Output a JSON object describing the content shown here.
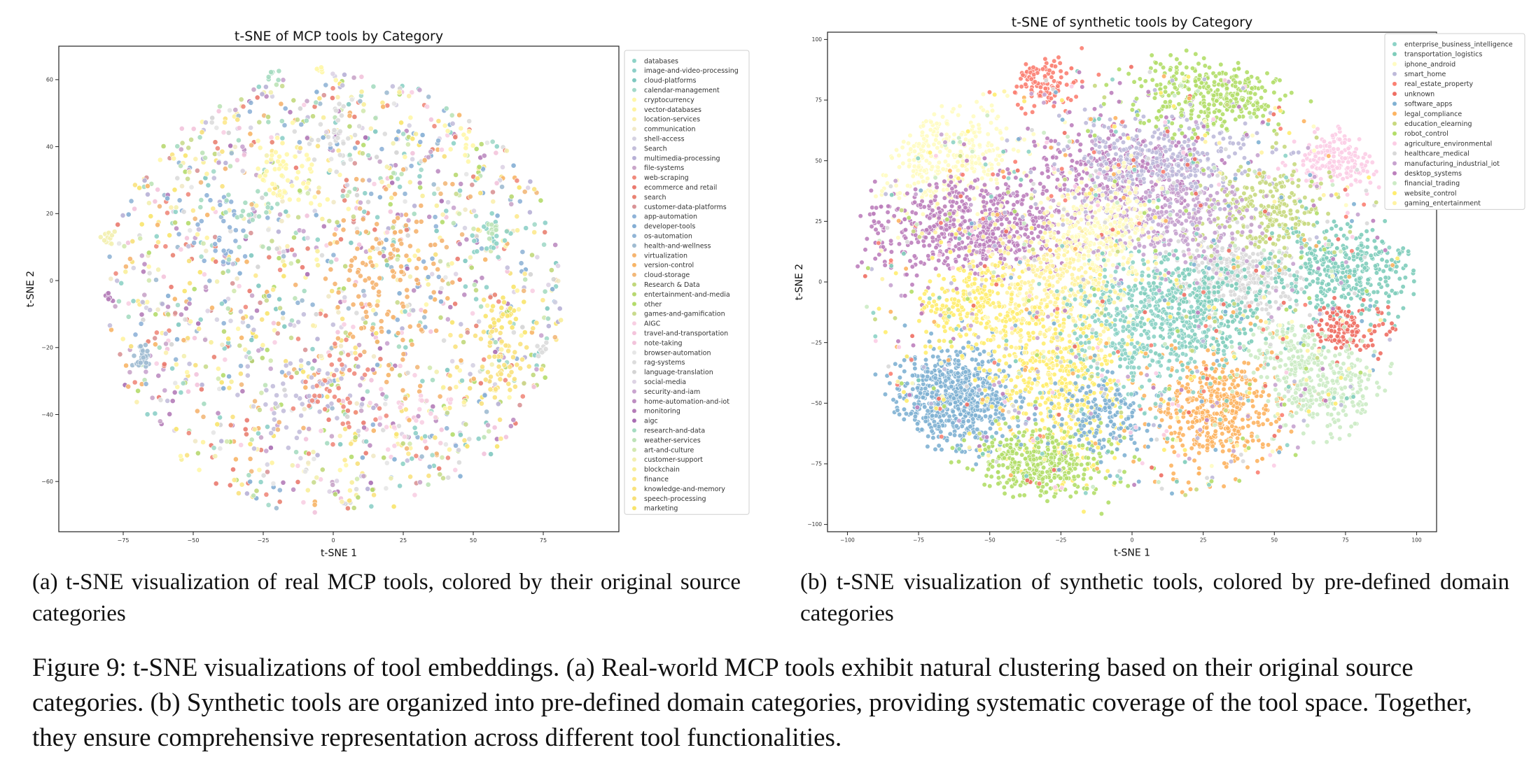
{
  "captions": {
    "a": "(a) t-SNE visualization of real MCP tools, colored by their original source categories",
    "b": "(b) t-SNE visualization of synthetic tools, colored by pre-defined domain categories",
    "figure": "Figure 9: t-SNE visualizations of tool embeddings. (a) Real-world MCP tools exhibit natural clustering based on their original source categories. (b) Synthetic tools are organized into pre-defined domain categories, providing systematic coverage of the tool space. Together, they ensure comprehensive representation across different tool functionalities."
  },
  "chart_data": [
    {
      "type": "scatter",
      "title": "t-SNE of MCP tools by Category",
      "xlabel": "t-SNE 1",
      "ylabel": "t-SNE 2",
      "xlim": [
        -98,
        102
      ],
      "ylim": [
        -75,
        70
      ],
      "xticks": [
        -75,
        -50,
        -25,
        0,
        25,
        50,
        75
      ],
      "yticks": [
        -60,
        -40,
        -20,
        0,
        20,
        40,
        60
      ],
      "grid": false,
      "legend_position": "right-outside",
      "point_count": 2200,
      "categories": [
        {
          "name": "databases",
          "color": "#8ed3c7"
        },
        {
          "name": "image-and-video-processing",
          "color": "#8dcfc8"
        },
        {
          "name": "cloud-platforms",
          "color": "#7fc8c0"
        },
        {
          "name": "calendar-management",
          "color": "#a3d9c9"
        },
        {
          "name": "cryptocurrency",
          "color": "#fff7a8"
        },
        {
          "name": "vector-databases",
          "color": "#fff3a0"
        },
        {
          "name": "location-services",
          "color": "#fbefae"
        },
        {
          "name": "communication",
          "color": "#f1e9c7"
        },
        {
          "name": "shell-access",
          "color": "#d5d2e2"
        },
        {
          "name": "Search",
          "color": "#c3bedb"
        },
        {
          "name": "multimedia-processing",
          "color": "#b7b0d6"
        },
        {
          "name": "file-systems",
          "color": "#c9a5c9"
        },
        {
          "name": "web-scraping",
          "color": "#f08a7c"
        },
        {
          "name": "ecommerce and retail",
          "color": "#ea7a6f"
        },
        {
          "name": "search",
          "color": "#e98272"
        },
        {
          "name": "customer-data-platforms",
          "color": "#d99396"
        },
        {
          "name": "app-automation",
          "color": "#8fb3d8"
        },
        {
          "name": "developer-tools",
          "color": "#84aed4"
        },
        {
          "name": "os-automation",
          "color": "#91b5d6"
        },
        {
          "name": "health-and-wellness",
          "color": "#9fbbd1"
        },
        {
          "name": "virtualization",
          "color": "#f5b470"
        },
        {
          "name": "version-control",
          "color": "#f7b567"
        },
        {
          "name": "cloud-storage",
          "color": "#f2b87a"
        },
        {
          "name": "Research & Data",
          "color": "#c1d87c"
        },
        {
          "name": "entertainment-and-media",
          "color": "#b8d871"
        },
        {
          "name": "other",
          "color": "#b4dc6b"
        },
        {
          "name": "games-and-gamification",
          "color": "#c9db8e"
        },
        {
          "name": "AIGC",
          "color": "#f8cfe3"
        },
        {
          "name": "travel-and-transportation",
          "color": "#f4c4dc"
        },
        {
          "name": "note-taking",
          "color": "#f2c3db"
        },
        {
          "name": "browser-automation",
          "color": "#e6e6e6"
        },
        {
          "name": "rag-systems",
          "color": "#dcdcdc"
        },
        {
          "name": "language-translation",
          "color": "#d4d4d4"
        },
        {
          "name": "social-media",
          "color": "#ddd3e4"
        },
        {
          "name": "security-and-iam",
          "color": "#c9a4cf"
        },
        {
          "name": "home-automation-and-iot",
          "color": "#bd8dc1"
        },
        {
          "name": "monitoring",
          "color": "#b47cb8"
        },
        {
          "name": "aigc",
          "color": "#a96db3"
        },
        {
          "name": "research-and-data",
          "color": "#a6dcc1"
        },
        {
          "name": "weather-services",
          "color": "#bde3b7"
        },
        {
          "name": "art-and-culture",
          "color": "#d3e9b0"
        },
        {
          "name": "customer-support",
          "color": "#f3efb0"
        },
        {
          "name": "blockchain",
          "color": "#f8ee9a"
        },
        {
          "name": "finance",
          "color": "#fde98e"
        },
        {
          "name": "knowledge-and-memory",
          "color": "#f9e27e"
        },
        {
          "name": "speech-processing",
          "color": "#f7e07a"
        },
        {
          "name": "marketing",
          "color": "#f8e46c"
        }
      ]
    },
    {
      "type": "scatter",
      "title": "t-SNE of synthetic tools by Category",
      "xlabel": "t-SNE 1",
      "ylabel": "t-SNE 2",
      "xlim": [
        -107,
        107
      ],
      "ylim": [
        -103,
        103
      ],
      "xticks": [
        -100,
        -75,
        -50,
        -25,
        0,
        25,
        50,
        75,
        100
      ],
      "yticks": [
        -100,
        -75,
        -50,
        -25,
        0,
        25,
        50,
        75,
        100
      ],
      "grid": false,
      "legend_position": "right-outside",
      "point_count": 8000,
      "categories": [
        {
          "name": "enterprise_business_intelligence",
          "color": "#8dd3c7"
        },
        {
          "name": "transportation_logistics",
          "color": "#7fcdbb"
        },
        {
          "name": "iphone_android",
          "color": "#fffcc2"
        },
        {
          "name": "smart_home",
          "color": "#bebada"
        },
        {
          "name": "real_estate_property",
          "color": "#fb8072"
        },
        {
          "name": "unknown",
          "color": "#ee6e63"
        },
        {
          "name": "software_apps",
          "color": "#80b1d3"
        },
        {
          "name": "legal_compliance",
          "color": "#fdb462"
        },
        {
          "name": "education_elearning",
          "color": "#c8d97f"
        },
        {
          "name": "robot_control",
          "color": "#b3de69"
        },
        {
          "name": "agriculture_environmental",
          "color": "#fccde5"
        },
        {
          "name": "healthcare_medical",
          "color": "#d9d9d9"
        },
        {
          "name": "manufacturing_industrial_iot",
          "color": "#c7a3cf"
        },
        {
          "name": "desktop_systems",
          "color": "#bc80bd"
        },
        {
          "name": "financial_trading",
          "color": "#ccebc5"
        },
        {
          "name": "website_control",
          "color": "#ffed6f"
        },
        {
          "name": "gaming_entertainment",
          "color": "#fff3a3"
        }
      ]
    }
  ]
}
